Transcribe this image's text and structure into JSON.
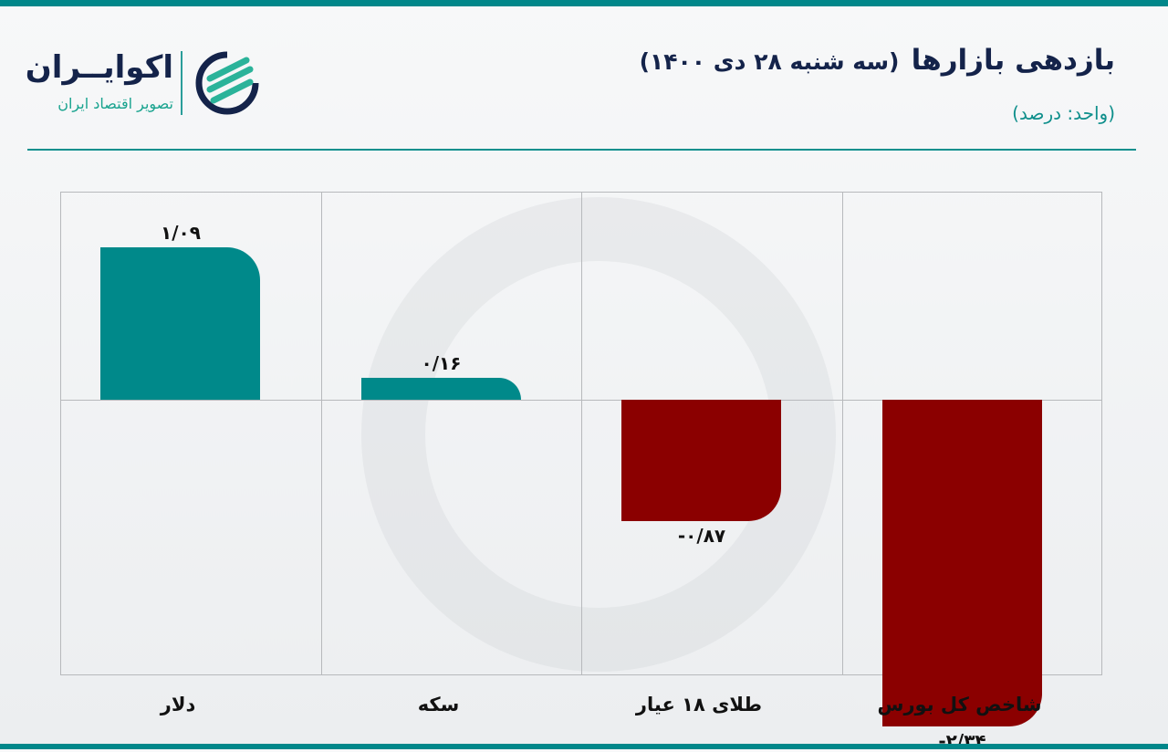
{
  "header": {
    "title": "بازدهی بازارها",
    "date": "(سه شنبه ۲۸ دی ۱۴۰۰)",
    "unit": "(واحد: درصد)"
  },
  "logo": {
    "name": "اکوایــران",
    "tagline": "تصویر اقتصاد ایران"
  },
  "colors": {
    "accent": "#00878a",
    "positive": "#00898a",
    "negative": "#8b0000",
    "title": "#14234a"
  },
  "chart_data": {
    "type": "bar",
    "title": "بازدهی بازارها (سه شنبه ۲۸ دی ۱۴۰۰)",
    "subtitle": "(واحد: درصد)",
    "xlabel": "",
    "ylabel": "درصد",
    "categories": [
      "دلار",
      "سکه",
      "طلای ۱۸ عیار",
      "شاخص کل بورس"
    ],
    "values": [
      1.09,
      0.16,
      -0.87,
      -2.34
    ],
    "value_labels": [
      "۱/۰۹",
      "۰/۱۶",
      "-۰/۸۷",
      "-۲/۳۴"
    ],
    "ylim": [
      -2.4,
      1.4
    ],
    "grid": true,
    "legend": null
  }
}
